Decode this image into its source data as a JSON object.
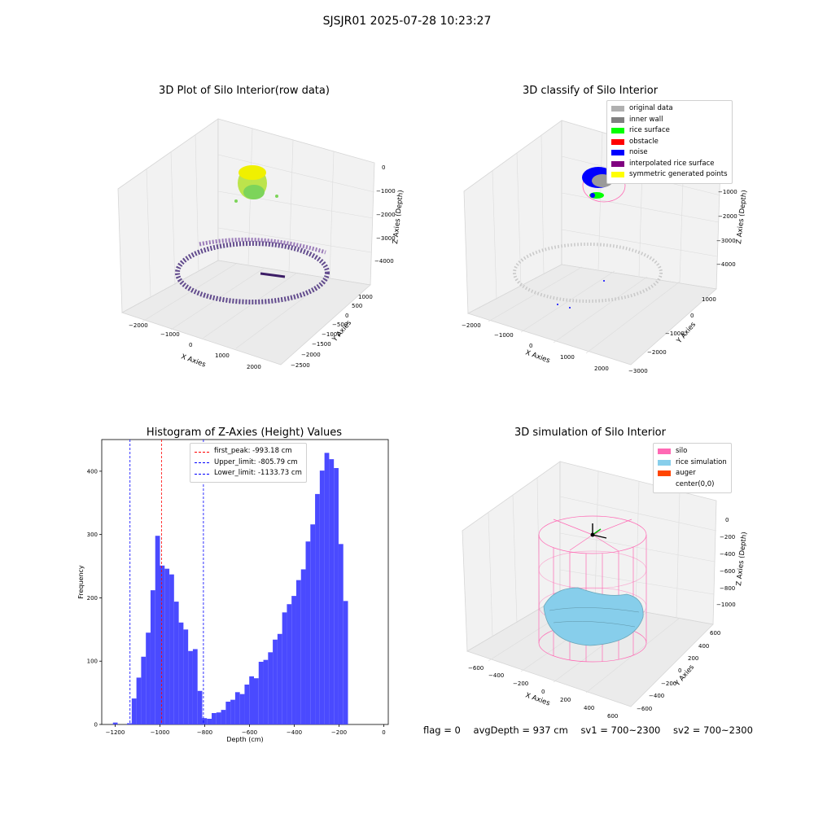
{
  "suptitle": "SJSJR01 2025-07-28 10:23:27",
  "panels": {
    "raw": {
      "title": "3D Plot of Silo Interior(row data)",
      "xlabel": "X Axies",
      "ylabel": "Y Axies",
      "zlabel": "Z Axies (Depth)",
      "xticks": [
        "−2000",
        "−1000",
        "0",
        "1000",
        "2000"
      ],
      "yticks": [
        "1000",
        "500",
        "0",
        "−500",
        "−1000",
        "−1500",
        "−2000",
        "−2500"
      ],
      "zticks": [
        "0",
        "−1000",
        "−2000",
        "−3000",
        "−4000"
      ]
    },
    "classify": {
      "title": "3D classify of Silo Interior",
      "xlabel": "X Axies",
      "ylabel": "Y Axies",
      "zlabel": "Z Axies (Depth)",
      "xticks": [
        "−2000",
        "−1000",
        "0",
        "1000",
        "2000"
      ],
      "yticks": [
        "1000",
        "0",
        "−1000",
        "−2000",
        "−3000"
      ],
      "zticks": [
        "0",
        "−1000",
        "−2000",
        "−3000",
        "−4000"
      ],
      "legend": [
        {
          "label": "original data",
          "color": "#b0b0b0"
        },
        {
          "label": "inner wall",
          "color": "#808080"
        },
        {
          "label": "rice surface",
          "color": "#00ff00"
        },
        {
          "label": "obstacle",
          "color": "#ff0000"
        },
        {
          "label": "noise",
          "color": "#0000ff"
        },
        {
          "label": "interpolated rice surface",
          "color": "#800080"
        },
        {
          "label": "symmetric generated points",
          "color": "#ffff00"
        }
      ]
    },
    "simulation": {
      "title": "3D simulation of Silo Interior",
      "xlabel": "X Axies",
      "ylabel": "Y Axies",
      "zlabel": "Z Axies (Depth)",
      "xticks": [
        "−600",
        "−400",
        "−200",
        "0",
        "200",
        "400",
        "600"
      ],
      "yticks": [
        "600",
        "400",
        "200",
        "0",
        "−200",
        "−400",
        "−600"
      ],
      "zticks": [
        "0",
        "−200",
        "−400",
        "−600",
        "−800",
        "−1000"
      ],
      "legend": [
        {
          "label": "silo",
          "color": "#ff69b4"
        },
        {
          "label": "rice simulation",
          "color": "#87ceeb"
        },
        {
          "label": "auger",
          "color": "#ff4500"
        },
        {
          "label": "center(0,0)",
          "color": "#ffffff"
        }
      ]
    }
  },
  "footer": {
    "flag": "flag = 0",
    "avg": "avgDepth = 937 cm",
    "sv1": "sv1 = 700~2300",
    "sv2": "sv2 = 700~2300"
  },
  "chart_data": {
    "type": "bar",
    "title": "Histogram of Z-Axies (Height) Values",
    "xlabel": "Depth (cm)",
    "ylabel": "Frequency",
    "xlim": [
      -1260,
      20
    ],
    "ylim": [
      0,
      450
    ],
    "bar_color": "#4a4aff",
    "xticks": [
      -1200,
      -1000,
      -800,
      -600,
      -400,
      -200,
      0
    ],
    "xtick_labels": [
      "−1200",
      "−1000",
      "−800",
      "−600",
      "−400",
      "−200",
      "0"
    ],
    "yticks": [
      0,
      100,
      200,
      300,
      400
    ],
    "bins": [
      {
        "x0": -1210,
        "x1": -1189,
        "value": 3
      },
      {
        "x0": -1147,
        "x1": -1126,
        "value": 2
      },
      {
        "x0": -1126,
        "x1": -1105,
        "value": 41
      },
      {
        "x0": -1105,
        "x1": -1084,
        "value": 74
      },
      {
        "x0": -1084,
        "x1": -1063,
        "value": 107
      },
      {
        "x0": -1063,
        "x1": -1042,
        "value": 145
      },
      {
        "x0": -1042,
        "x1": -1021,
        "value": 212
      },
      {
        "x0": -1021,
        "x1": -1000,
        "value": 298
      },
      {
        "x0": -1000,
        "x1": -979,
        "value": 251
      },
      {
        "x0": -979,
        "x1": -958,
        "value": 246
      },
      {
        "x0": -958,
        "x1": -937,
        "value": 237
      },
      {
        "x0": -937,
        "x1": -916,
        "value": 194
      },
      {
        "x0": -916,
        "x1": -895,
        "value": 161
      },
      {
        "x0": -895,
        "x1": -874,
        "value": 150
      },
      {
        "x0": -874,
        "x1": -853,
        "value": 116
      },
      {
        "x0": -853,
        "x1": -832,
        "value": 119
      },
      {
        "x0": -832,
        "x1": -811,
        "value": 53
      },
      {
        "x0": -811,
        "x1": -790,
        "value": 10
      },
      {
        "x0": -790,
        "x1": -769,
        "value": 9
      },
      {
        "x0": -769,
        "x1": -748,
        "value": 18
      },
      {
        "x0": -748,
        "x1": -727,
        "value": 19
      },
      {
        "x0": -727,
        "x1": -706,
        "value": 23
      },
      {
        "x0": -706,
        "x1": -685,
        "value": 36
      },
      {
        "x0": -685,
        "x1": -664,
        "value": 39
      },
      {
        "x0": -664,
        "x1": -643,
        "value": 51
      },
      {
        "x0": -643,
        "x1": -622,
        "value": 48
      },
      {
        "x0": -622,
        "x1": -601,
        "value": 63
      },
      {
        "x0": -601,
        "x1": -580,
        "value": 76
      },
      {
        "x0": -580,
        "x1": -559,
        "value": 73
      },
      {
        "x0": -559,
        "x1": -538,
        "value": 99
      },
      {
        "x0": -538,
        "x1": -517,
        "value": 102
      },
      {
        "x0": -517,
        "x1": -496,
        "value": 114
      },
      {
        "x0": -496,
        "x1": -475,
        "value": 134
      },
      {
        "x0": -475,
        "x1": -454,
        "value": 143
      },
      {
        "x0": -454,
        "x1": -433,
        "value": 177
      },
      {
        "x0": -433,
        "x1": -412,
        "value": 190
      },
      {
        "x0": -412,
        "x1": -391,
        "value": 203
      },
      {
        "x0": -391,
        "x1": -370,
        "value": 228
      },
      {
        "x0": -370,
        "x1": -349,
        "value": 245
      },
      {
        "x0": -349,
        "x1": -328,
        "value": 289
      },
      {
        "x0": -328,
        "x1": -307,
        "value": 316
      },
      {
        "x0": -307,
        "x1": -286,
        "value": 364
      },
      {
        "x0": -286,
        "x1": -265,
        "value": 401
      },
      {
        "x0": -265,
        "x1": -244,
        "value": 429
      },
      {
        "x0": -244,
        "x1": -223,
        "value": 419
      },
      {
        "x0": -223,
        "x1": -202,
        "value": 405
      },
      {
        "x0": -202,
        "x1": -181,
        "value": 285
      },
      {
        "x0": -181,
        "x1": -160,
        "value": 195
      }
    ],
    "vlines": [
      {
        "label": "first_peak: -993.18 cm",
        "x": -993.18,
        "color": "#ff0000"
      },
      {
        "label": "Upper_limit: -805.79 cm",
        "x": -805.79,
        "color": "#0000ff"
      },
      {
        "label": "Lower_limit: -1133.73 cm",
        "x": -1133.73,
        "color": "#0000ff"
      }
    ]
  }
}
